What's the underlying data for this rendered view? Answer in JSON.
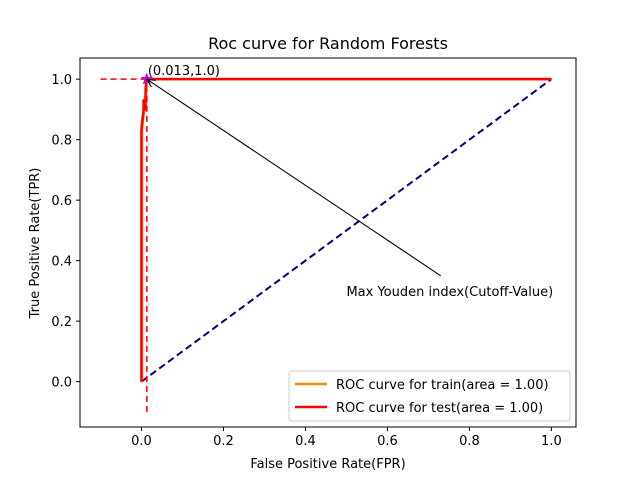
{
  "chart_data": {
    "type": "line",
    "title": "Roc curve for Random Forests",
    "xlabel": "False Positive Rate(FPR)",
    "ylabel": "True Positive Rate(TPR)",
    "xlim": [
      -0.15,
      1.06
    ],
    "ylim": [
      -0.15,
      1.07
    ],
    "x_ticks": [
      0.0,
      0.2,
      0.4,
      0.6,
      0.8,
      1.0
    ],
    "x_tick_labels": [
      "0.0",
      "0.2",
      "0.4",
      "0.6",
      "0.8",
      "1.0"
    ],
    "y_ticks": [
      0.0,
      0.2,
      0.4,
      0.6,
      0.8,
      1.0
    ],
    "y_tick_labels": [
      "0.0",
      "0.2",
      "0.4",
      "0.6",
      "0.8",
      "1.0"
    ],
    "grid": false,
    "legend_placement": "lower-right",
    "series": [
      {
        "name": "ROC curve for train(area = 1.00)",
        "color": "#ff8c00",
        "style": "solid",
        "x": [
          0.0,
          0.0,
          0.01,
          0.013,
          1.0
        ],
        "y": [
          0.0,
          0.85,
          0.95,
          1.0,
          1.0
        ]
      },
      {
        "name": "ROC curve for test(area = 1.00)",
        "color": "#ff0000",
        "style": "solid",
        "x": [
          0.0,
          0.0,
          0.005,
          0.005,
          0.01,
          0.01,
          0.013,
          1.0
        ],
        "y": [
          0.0,
          0.83,
          0.89,
          0.93,
          0.9,
          0.97,
          1.0,
          1.0
        ]
      }
    ],
    "reference_line": {
      "color": "#000080",
      "style": "dashed",
      "x": [
        0.0,
        1.0
      ],
      "y": [
        0.0,
        1.0
      ]
    },
    "cutoff": {
      "x": 0.013,
      "y": 1.0,
      "label": "(0.013,1.0)",
      "color": "#ff0000",
      "marker_color": "#cc00cc",
      "hline_x": [
        -0.1,
        0.013
      ],
      "vline_y": [
        -0.1,
        1.0
      ]
    },
    "annotation": {
      "text": "Max Youden index(Cutoff-Value)",
      "text_anchor_at": [
        0.5,
        0.3
      ],
      "arrow_to": [
        0.013,
        1.0
      ],
      "arrow_from": [
        0.73,
        0.35
      ]
    }
  }
}
